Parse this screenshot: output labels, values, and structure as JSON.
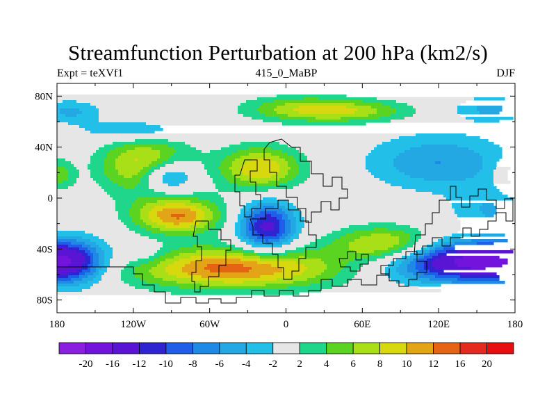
{
  "chart_data": {
    "type": "heatmap",
    "title": "Streamfunction Perturbation at 200 hPa (km2/s)",
    "left_label": "Expt = teXVf1",
    "center_label": "415_0_MaBP",
    "right_label": "DJF",
    "x_ticks": [
      "180",
      "120W",
      "60W",
      "0",
      "60E",
      "120E",
      "180"
    ],
    "y_ticks": [
      "80N",
      "40N",
      "0",
      "40S",
      "80S"
    ],
    "xlim": [
      -180,
      180
    ],
    "ylim": [
      -90,
      90
    ],
    "colorbar": {
      "labels": [
        "-20",
        "-16",
        "-12",
        "-10",
        "-8",
        "-6",
        "-4",
        "-2",
        "2",
        "4",
        "6",
        "8",
        "10",
        "12",
        "16",
        "20"
      ],
      "levels": [
        -20,
        -16,
        -12,
        -10,
        -8,
        -6,
        -4,
        -2,
        2,
        4,
        6,
        8,
        10,
        12,
        16,
        20
      ],
      "colors": [
        "#8a1fe0",
        "#7214dc",
        "#5a14d4",
        "#2e24d2",
        "#1e5ee8",
        "#1e8ae6",
        "#24a8e4",
        "#22c0e8",
        "#e6e6e6",
        "#20d68a",
        "#5ad421",
        "#a8df16",
        "#d8d80e",
        "#e4a418",
        "#e46414",
        "#e42a1e",
        "#e60e0e"
      ]
    },
    "field_features": [
      {
        "lon": -110,
        "lat": 25,
        "amp": 10,
        "sx": 35,
        "sy": 22
      },
      {
        "lon": -93,
        "lat": 17,
        "amp": -10,
        "sx": 22,
        "sy": 13
      },
      {
        "lon": -85,
        "lat": -14,
        "amp": 12,
        "sx": 34,
        "sy": 14
      },
      {
        "lon": -15,
        "lat": -23,
        "amp": -13,
        "sx": 22,
        "sy": 20
      },
      {
        "lon": -20,
        "lat": 23,
        "amp": 10,
        "sx": 32,
        "sy": 17
      },
      {
        "lon": -40,
        "lat": -55,
        "amp": 13,
        "sx": 85,
        "sy": 16
      },
      {
        "lon": 78,
        "lat": -37,
        "amp": 10,
        "sx": 40,
        "sy": 14
      },
      {
        "lon": 150,
        "lat": -50,
        "amp": -18,
        "sx": 70,
        "sy": 16
      },
      {
        "lon": -175,
        "lat": -50,
        "amp": -18,
        "sx": 32,
        "sy": 17
      },
      {
        "lon": 10,
        "lat": 70,
        "amp": 6,
        "sx": 45,
        "sy": 10
      },
      {
        "lon": 55,
        "lat": 68,
        "amp": 6,
        "sx": 48,
        "sy": 9
      },
      {
        "lon": -120,
        "lat": 53,
        "amp": -5,
        "sx": 40,
        "sy": 8
      },
      {
        "lon": 120,
        "lat": 28,
        "amp": -6,
        "sx": 55,
        "sy": 22
      },
      {
        "lon": 160,
        "lat": -10,
        "amp": -4,
        "sx": 30,
        "sy": 18
      },
      {
        "lon": 178,
        "lat": 18,
        "amp": 5,
        "sx": 12,
        "sy": 12
      },
      {
        "lon": -178,
        "lat": 18,
        "amp": 5,
        "sx": 12,
        "sy": 12
      },
      {
        "lon": 160,
        "lat": 70,
        "amp": -4.5,
        "sx": 30,
        "sy": 10
      },
      {
        "lon": -170,
        "lat": 68,
        "amp": -4.5,
        "sx": 25,
        "sy": 9
      },
      {
        "lon": -110,
        "lat": -45,
        "amp": -3,
        "sx": 20,
        "sy": 10
      }
    ]
  }
}
